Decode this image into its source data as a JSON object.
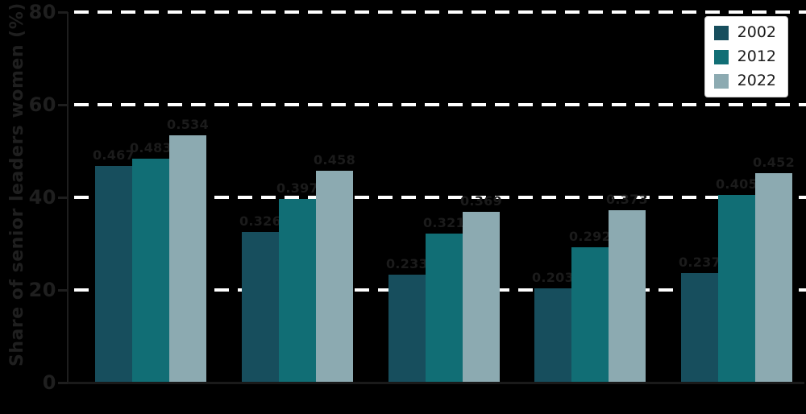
{
  "chart_data": {
    "type": "bar",
    "title": "",
    "xlabel": "",
    "ylabel": "Share of senior leaders women (%)",
    "ylim": [
      0,
      80
    ],
    "yticks": [
      0,
      20,
      40,
      60,
      80
    ],
    "grid": "horizontal white dashed lines at y=20,40,60,80",
    "legend_position": "upper right",
    "num_groups": 5,
    "categories": [
      "",
      "",
      "",
      "",
      ""
    ],
    "value_scale": 100,
    "bar_labels_visible": true,
    "series": [
      {
        "name": "2002",
        "color": "#174e5d",
        "values": [
          0.467,
          0.326,
          0.233,
          0.203,
          0.237
        ]
      },
      {
        "name": "2012",
        "color": "#116e75",
        "values": [
          0.483,
          0.397,
          0.321,
          0.292,
          0.405
        ]
      },
      {
        "name": "2022",
        "color": "#8caab1",
        "values": [
          0.534,
          0.458,
          0.369,
          0.373,
          0.452
        ]
      }
    ]
  },
  "colors": {
    "background": "#000000",
    "grid": "#ffffff",
    "axis_text": "#1f1f1f",
    "bar_label_text": "#1b1b1b",
    "legend_bg": "#ffffff",
    "legend_text": "#1a1a1a"
  }
}
